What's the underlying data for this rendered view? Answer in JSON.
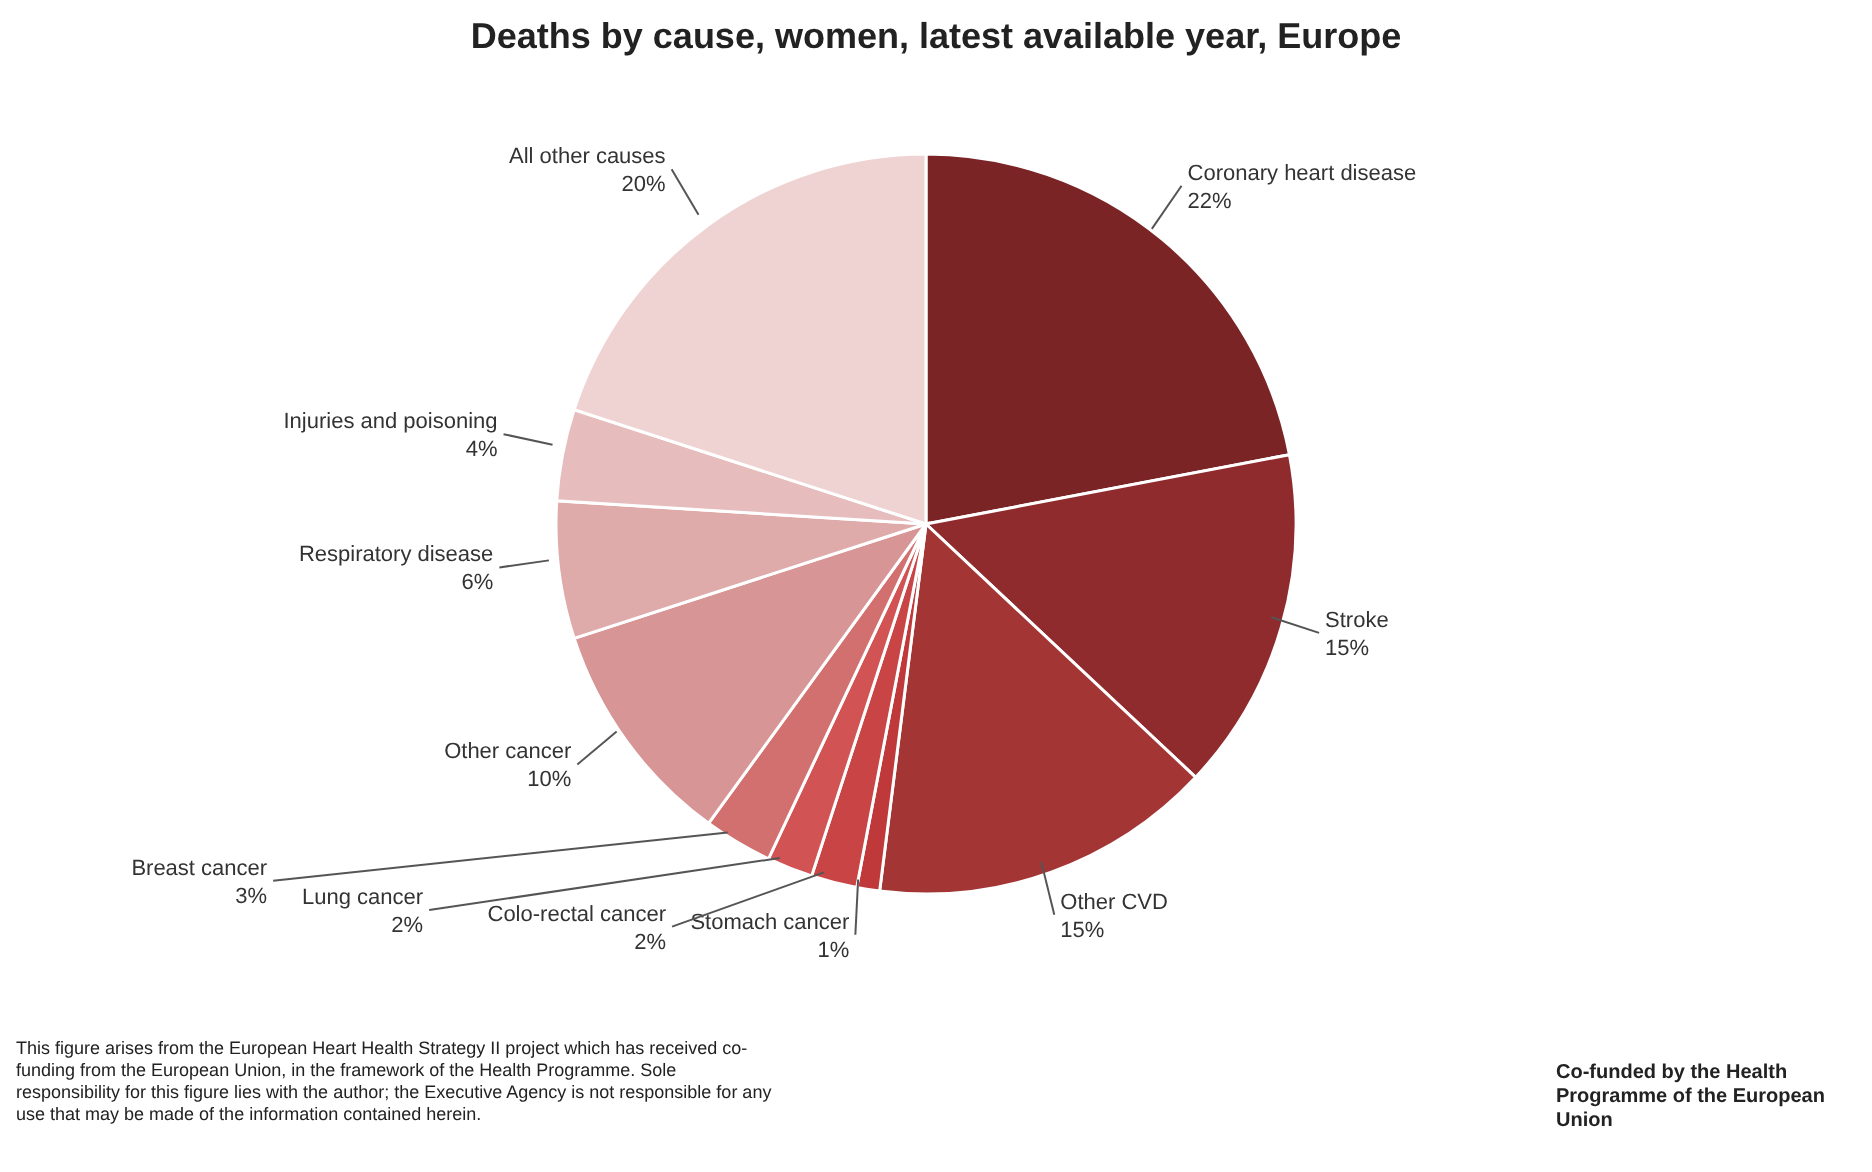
{
  "chart_data": {
    "type": "pie",
    "title": "Deaths by cause, women, latest available year, Europe",
    "categories": [
      "Coronary heart disease",
      "Stroke",
      "Other CVD",
      "Stomach cancer",
      "Colo-rectal cancer",
      "Lung cancer",
      "Breast cancer",
      "Other cancer",
      "Respiratory disease",
      "Injuries and poisoning",
      "All other causes"
    ],
    "values": [
      22,
      15,
      15,
      1,
      2,
      2,
      3,
      10,
      6,
      4,
      20
    ],
    "value_labels": [
      "22%",
      "15%",
      "15%",
      "1%",
      "2%",
      "2%",
      "3%",
      "10%",
      "6%",
      "4%",
      "20%"
    ],
    "colors": [
      "#7b2426",
      "#8f2b2d",
      "#a33535",
      "#c0393a",
      "#c94445",
      "#d15353",
      "#d27070",
      "#d79595",
      "#dfaaaa",
      "#e6bcbc",
      "#efd3d3"
    ],
    "annotations": [
      "This figure arises from the European Heart Health Strategy II project which has received co-funding from the European Union, in the framework of the Health Programme. Sole responsibility for this figure lies with the author; the Executive Agency is not responsible for any use that may be made of the information contained herein.",
      "Co-funded by the Health Programme of the European Union"
    ]
  }
}
